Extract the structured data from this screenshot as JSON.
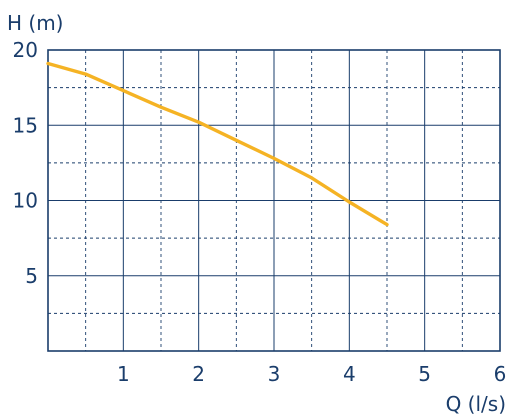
{
  "chart_data": {
    "type": "line",
    "title": "",
    "xlabel": "Q (l/s)",
    "ylabel": "H (m)",
    "xlim": [
      0,
      6
    ],
    "ylim": [
      0,
      20
    ],
    "x_ticks": [
      1,
      2,
      3,
      4,
      5,
      6
    ],
    "x_tick_labels": [
      "1",
      "2",
      "3",
      "4",
      "5",
      "6"
    ],
    "y_ticks": [
      5,
      10,
      15,
      20
    ],
    "y_tick_labels": [
      "5",
      "10",
      "15",
      "20"
    ],
    "grid": true,
    "grid_style": "dashed",
    "frame_color": "#1a3d6b",
    "series": [
      {
        "color": "#f5b324",
        "x": [
          0,
          0.5,
          1.0,
          1.5,
          2.0,
          2.5,
          3.0,
          3.5,
          4.0,
          4.5
        ],
        "y": [
          19.1,
          18.4,
          17.3,
          16.2,
          15.2,
          14.0,
          12.8,
          11.5,
          9.9,
          8.4
        ]
      }
    ]
  }
}
